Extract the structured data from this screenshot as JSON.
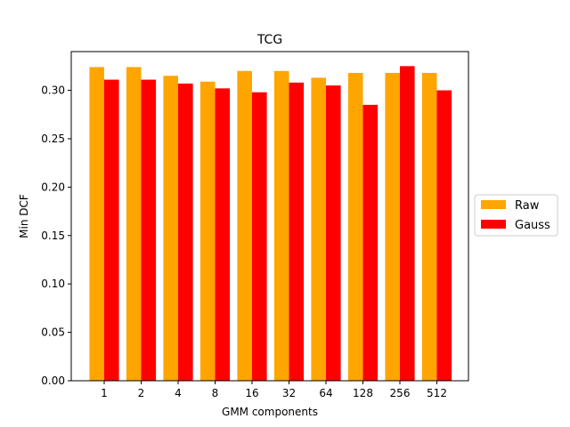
{
  "chart_data": {
    "type": "bar",
    "title": "TCG",
    "xlabel": "GMM components",
    "ylabel": "Min DCF",
    "categories": [
      "1",
      "2",
      "4",
      "8",
      "16",
      "32",
      "64",
      "128",
      "256",
      "512"
    ],
    "series": [
      {
        "name": "Raw",
        "color": "#ffa500",
        "values": [
          0.324,
          0.324,
          0.315,
          0.309,
          0.32,
          0.32,
          0.313,
          0.318,
          0.318,
          0.318
        ]
      },
      {
        "name": "Gauss",
        "color": "#ff0000",
        "values": [
          0.311,
          0.311,
          0.307,
          0.302,
          0.298,
          0.308,
          0.305,
          0.285,
          0.325,
          0.3
        ]
      }
    ],
    "ylim": [
      0,
      0.34
    ],
    "yticks": [
      "0.00",
      "0.05",
      "0.10",
      "0.15",
      "0.20",
      "0.25",
      "0.30"
    ],
    "grid": false,
    "legend_position": "right-outside"
  }
}
